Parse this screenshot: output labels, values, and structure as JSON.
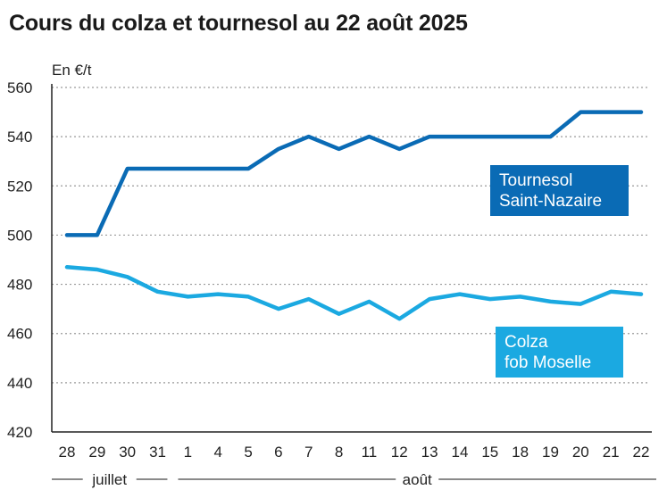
{
  "chart_data": {
    "type": "line",
    "title": "Cours du colza et tournesol au 22 août 2025",
    "ylabel": "En €/t",
    "ylim": [
      420,
      560
    ],
    "yticks": [
      420,
      440,
      460,
      480,
      500,
      520,
      540,
      560
    ],
    "grid": true,
    "categories": [
      "28",
      "29",
      "30",
      "31",
      "1",
      "4",
      "5",
      "6",
      "7",
      "8",
      "11",
      "12",
      "13",
      "14",
      "15",
      "18",
      "19",
      "20",
      "21",
      "22"
    ],
    "month_labels": [
      {
        "label": "juillet",
        "from": 0,
        "to": 3
      },
      {
        "label": "août",
        "from": 4,
        "to": 19
      }
    ],
    "series": [
      {
        "name": "Tournesol Saint-Nazaire",
        "label_lines": [
          "Tournesol",
          "Saint-Nazaire"
        ],
        "color": "#0a6bb5",
        "values": [
          500,
          500,
          527,
          527,
          527,
          527,
          527,
          535,
          540,
          535,
          540,
          535,
          540,
          540,
          540,
          540,
          540,
          550,
          550,
          550
        ]
      },
      {
        "name": "Colza fob Moselle",
        "label_lines": [
          "Colza",
          "fob Moselle"
        ],
        "color": "#1ba9e1",
        "values": [
          487,
          486,
          483,
          477,
          475,
          476,
          475,
          470,
          474,
          468,
          473,
          466,
          474,
          476,
          474,
          475,
          473,
          472,
          477,
          476
        ]
      }
    ]
  }
}
